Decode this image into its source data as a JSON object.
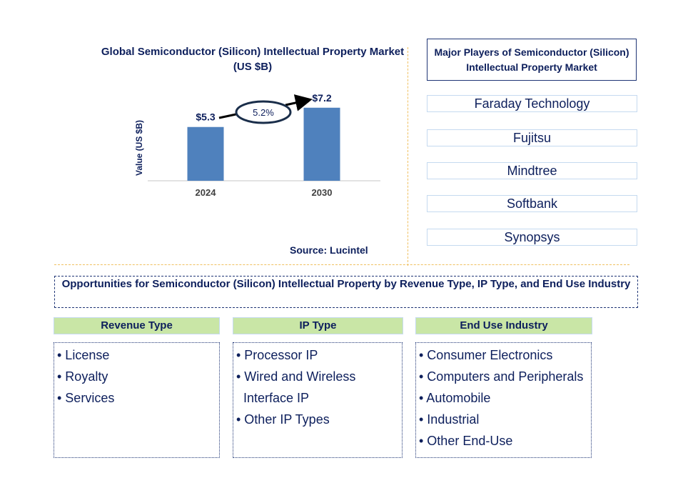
{
  "chart_data": {
    "type": "bar",
    "title": "Global Semiconductor (Silicon) Intellectual Property Market (US $B)",
    "ylabel": "Value (US $B)",
    "xlabel": "",
    "categories": [
      "2024",
      "2030"
    ],
    "values": [
      5.3,
      7.2
    ],
    "data_labels": [
      "$5.3",
      "$7.2"
    ],
    "annotation": "5.2%",
    "bar_color": "#4f81bd",
    "grid": false
  },
  "source": "Source: Lucintel",
  "players": {
    "title": "Major Players of Semiconductor (Silicon) Intellectual Property Market",
    "items": [
      "Faraday Technology",
      "Fujitsu",
      "Mindtree",
      "Softbank",
      "Synopsys"
    ]
  },
  "opportunities": {
    "title": "Opportunities for Semiconductor (Silicon) Intellectual Property by Revenue Type, IP Type, and End Use Industry",
    "segments": [
      {
        "heading": "Revenue Type",
        "items": [
          "• License",
          "• Royalty",
          "• Services"
        ]
      },
      {
        "heading": "IP Type",
        "items": [
          "• Processor IP",
          "• Wired and Wireless",
          "  Interface IP",
          "• Other IP Types"
        ]
      },
      {
        "heading": "End Use Industry",
        "items": [
          "• Consumer Electronics",
          "• Computers and Peripherals",
          "• Automobile",
          "• Industrial",
          "• Other End-Use"
        ]
      }
    ]
  }
}
